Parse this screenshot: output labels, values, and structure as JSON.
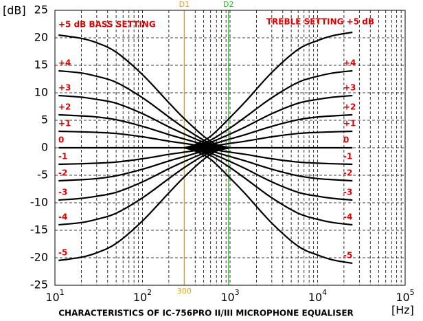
{
  "chart_data": {
    "type": "line",
    "title": "CHARACTERISTICS OF IC-756PRO II/III MICROPHONE EQUALISER",
    "y_label": "[dB]",
    "x_label": "[Hz]",
    "x_scale": "log",
    "grid": true,
    "minor_grid": true,
    "xlim": [
      10,
      100000
    ],
    "ylim": [
      -25,
      25
    ],
    "xticks": [
      {
        "value": 10,
        "label": "10",
        "exponent": "1"
      },
      {
        "value": 100,
        "label": "10",
        "exponent": "2"
      },
      {
        "value": 1000,
        "label": "10",
        "exponent": "3"
      },
      {
        "value": 10000,
        "label": "10",
        "exponent": "4"
      },
      {
        "value": 100000,
        "label": "10",
        "exponent": "5"
      }
    ],
    "yticks": [
      -25,
      -20,
      -15,
      -10,
      -5,
      0,
      5,
      10,
      15,
      20,
      25
    ],
    "markers": [
      {
        "label": "D1",
        "x": 300,
        "color": "#e0a020"
      },
      {
        "label": "D2",
        "x": 960,
        "color": "#22bb22"
      }
    ],
    "series": [
      {
        "name": "+5 dB BASS SETTING",
        "side": "left",
        "color": "#000000",
        "x": [
          11,
          20,
          30,
          50,
          100,
          200,
          300,
          500,
          700,
          1000
        ],
        "values": [
          20.5,
          19.9,
          19.1,
          17.4,
          13.3,
          8.2,
          5.3,
          2.1,
          0.6,
          0
        ]
      },
      {
        "name": "+4",
        "side": "left",
        "color": "#000000",
        "x": [
          11,
          20,
          30,
          50,
          100,
          200,
          300,
          500,
          700,
          1000
        ],
        "values": [
          14,
          13.6,
          13,
          11.9,
          9.1,
          5.6,
          3.6,
          1.4,
          0.4,
          0
        ]
      },
      {
        "name": "+3",
        "side": "left",
        "color": "#000000",
        "x": [
          11,
          20,
          30,
          50,
          100,
          200,
          300,
          500,
          700,
          1000
        ],
        "values": [
          9.5,
          9.2,
          8.8,
          8.1,
          6.2,
          3.8,
          2.5,
          1,
          0.3,
          0
        ]
      },
      {
        "name": "+2",
        "side": "left",
        "color": "#000000",
        "x": [
          11,
          20,
          30,
          50,
          100,
          200,
          300,
          500,
          700,
          1000
        ],
        "values": [
          6,
          5.8,
          5.6,
          5.1,
          3.9,
          2.4,
          1.6,
          0.6,
          0.2,
          0
        ]
      },
      {
        "name": "+1",
        "side": "left",
        "color": "#000000",
        "x": [
          11,
          20,
          30,
          50,
          100,
          200,
          300,
          500,
          700,
          1000
        ],
        "values": [
          3,
          2.9,
          2.8,
          2.6,
          2,
          1.2,
          0.8,
          0.3,
          0.1,
          0
        ]
      },
      {
        "name": "0",
        "side": "left",
        "color": "#000000",
        "x": [
          11,
          1000
        ],
        "values": [
          0,
          0
        ]
      },
      {
        "name": "-1",
        "side": "left",
        "color": "#000000",
        "x": [
          11,
          20,
          30,
          50,
          100,
          200,
          300,
          500,
          700,
          1000
        ],
        "values": [
          -3,
          -2.9,
          -2.8,
          -2.6,
          -2,
          -1.2,
          -0.8,
          -0.3,
          -0.1,
          0
        ]
      },
      {
        "name": "-2",
        "side": "left",
        "color": "#000000",
        "x": [
          11,
          20,
          30,
          50,
          100,
          200,
          300,
          500,
          700,
          1000
        ],
        "values": [
          -6,
          -5.8,
          -5.6,
          -5.1,
          -3.9,
          -2.4,
          -1.6,
          -0.6,
          -0.2,
          0
        ]
      },
      {
        "name": "-3",
        "side": "left",
        "color": "#000000",
        "x": [
          11,
          20,
          30,
          50,
          100,
          200,
          300,
          500,
          700,
          1000
        ],
        "values": [
          -9.5,
          -9.2,
          -8.8,
          -8.1,
          -6.2,
          -3.8,
          -2.5,
          -1,
          -0.3,
          0
        ]
      },
      {
        "name": "-4",
        "side": "left",
        "color": "#000000",
        "x": [
          11,
          20,
          30,
          50,
          100,
          200,
          300,
          500,
          700,
          1000
        ],
        "values": [
          -14,
          -13.6,
          -13,
          -11.9,
          -9.1,
          -5.6,
          -3.6,
          -1.4,
          -0.4,
          0
        ]
      },
      {
        "name": "-5",
        "side": "left",
        "color": "#000000",
        "x": [
          11,
          20,
          30,
          50,
          100,
          200,
          300,
          500,
          700,
          1000
        ],
        "values": [
          -20.5,
          -19.9,
          -19.1,
          -17.4,
          -13.3,
          -8.2,
          -5.3,
          -2.1,
          -0.6,
          0
        ]
      },
      {
        "name": "TREBLE SETTING +5 dB",
        "side": "right",
        "color": "#000000",
        "x": [
          300,
          400,
          600,
          1000,
          1500,
          3000,
          6000,
          10000,
          15000,
          25000
        ],
        "values": [
          0,
          0.6,
          2.1,
          5.5,
          8.4,
          13.7,
          17.9,
          19.5,
          20.4,
          21
        ]
      },
      {
        "name": "+4",
        "side": "right",
        "color": "#000000",
        "x": [
          300,
          400,
          600,
          1000,
          1500,
          3000,
          6000,
          10000,
          15000,
          25000
        ],
        "values": [
          0,
          0.4,
          1.4,
          3.6,
          5.6,
          9.1,
          11.9,
          13,
          13.6,
          14
        ]
      },
      {
        "name": "+3",
        "side": "right",
        "color": "#000000",
        "x": [
          300,
          400,
          600,
          1000,
          1500,
          3000,
          6000,
          10000,
          15000,
          25000
        ],
        "values": [
          0,
          0.3,
          1,
          2.5,
          3.8,
          6.2,
          8.1,
          8.8,
          9.2,
          9.5
        ]
      },
      {
        "name": "+2",
        "side": "right",
        "color": "#000000",
        "x": [
          300,
          400,
          600,
          1000,
          1500,
          3000,
          6000,
          10000,
          15000,
          25000
        ],
        "values": [
          0,
          0.2,
          0.6,
          1.6,
          2.4,
          3.9,
          5.1,
          5.6,
          5.8,
          6
        ]
      },
      {
        "name": "+1",
        "side": "right",
        "color": "#000000",
        "x": [
          300,
          400,
          600,
          1000,
          1500,
          3000,
          6000,
          10000,
          15000,
          25000
        ],
        "values": [
          0,
          0.1,
          0.3,
          0.8,
          1.2,
          2,
          2.6,
          2.8,
          2.9,
          3
        ]
      },
      {
        "name": "0",
        "side": "right",
        "color": "#000000",
        "x": [
          300,
          25000
        ],
        "values": [
          0,
          0
        ]
      },
      {
        "name": "-1",
        "side": "right",
        "color": "#000000",
        "x": [
          300,
          400,
          600,
          1000,
          1500,
          3000,
          6000,
          10000,
          15000,
          25000
        ],
        "values": [
          0,
          -0.1,
          -0.3,
          -0.8,
          -1.2,
          -2,
          -2.6,
          -2.8,
          -2.9,
          -3
        ]
      },
      {
        "name": "-2",
        "side": "right",
        "color": "#000000",
        "x": [
          300,
          400,
          600,
          1000,
          1500,
          3000,
          6000,
          10000,
          15000,
          25000
        ],
        "values": [
          0,
          -0.2,
          -0.6,
          -1.6,
          -2.4,
          -3.9,
          -5.1,
          -5.6,
          -5.8,
          -6
        ]
      },
      {
        "name": "-3",
        "side": "right",
        "color": "#000000",
        "x": [
          300,
          400,
          600,
          1000,
          1500,
          3000,
          6000,
          10000,
          15000,
          25000
        ],
        "values": [
          0,
          -0.3,
          -1,
          -2.5,
          -3.8,
          -6.2,
          -8.1,
          -8.8,
          -9.2,
          -9.5
        ]
      },
      {
        "name": "-4",
        "side": "right",
        "color": "#000000",
        "x": [
          300,
          400,
          600,
          1000,
          1500,
          3000,
          6000,
          10000,
          15000,
          25000
        ],
        "values": [
          0,
          -0.4,
          -1.4,
          -3.6,
          -5.6,
          -9.1,
          -11.9,
          -13,
          -13.6,
          -14
        ]
      },
      {
        "name": "-5",
        "side": "right",
        "color": "#000000",
        "x": [
          300,
          400,
          600,
          1000,
          1500,
          3000,
          6000,
          10000,
          15000,
          25000
        ],
        "values": [
          0,
          -0.6,
          -2.1,
          -5.5,
          -8.4,
          -13.7,
          -17.9,
          -19.5,
          -20.4,
          -21
        ]
      }
    ]
  }
}
